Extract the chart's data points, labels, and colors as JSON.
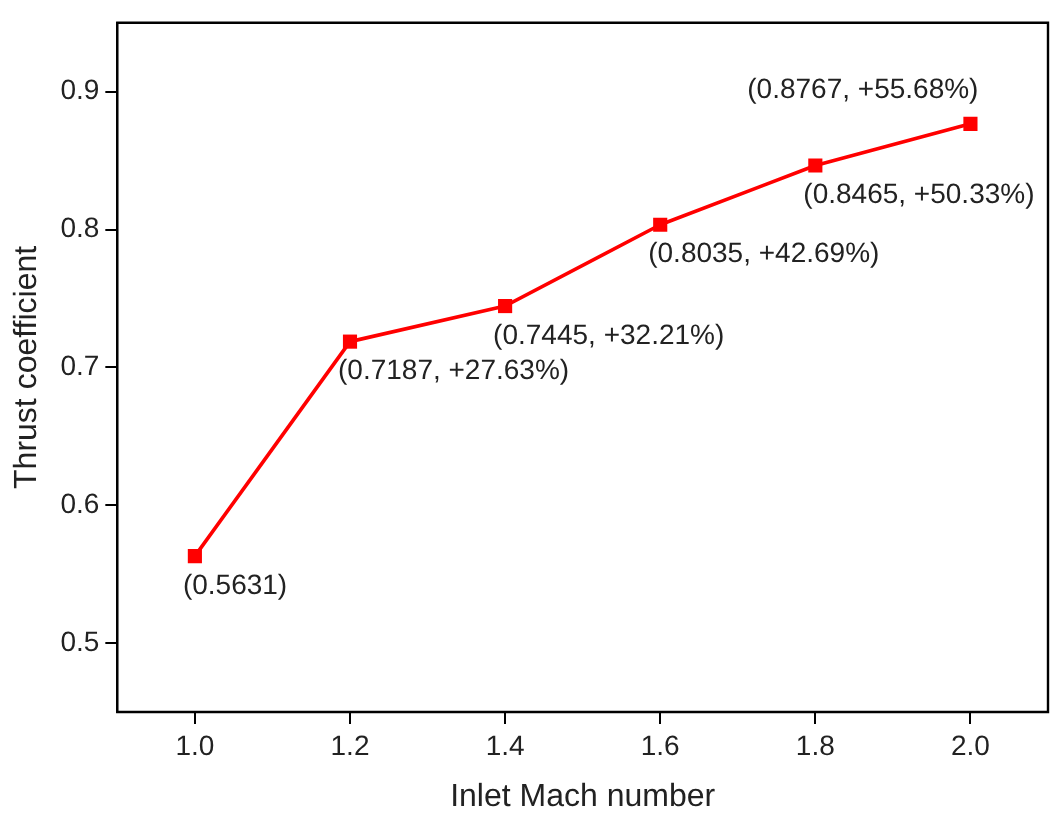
{
  "chart_data": {
    "type": "line",
    "xlabel": "Inlet Mach number",
    "ylabel": "Thrust coefficient",
    "x": [
      1.0,
      1.2,
      1.4,
      1.6,
      1.8,
      2.0
    ],
    "series": [
      {
        "color": "#ff0000",
        "values": [
          0.5631,
          0.7187,
          0.7445,
          0.8035,
          0.8465,
          0.8767
        ],
        "value_labels": [
          "(0.5631)",
          "(0.7187, +27.63%)",
          "(0.7445, +32.21%)",
          "(0.8035, +42.69%)",
          "(0.8465, +50.33%)",
          "(0.8767, +55.68%)"
        ]
      }
    ],
    "xlim": [
      0.9,
      2.1
    ],
    "xticks": [
      {
        "value": 1.0,
        "label": "1.0"
      },
      {
        "value": 1.2,
        "label": "1.2"
      },
      {
        "value": 1.4,
        "label": "1.4"
      },
      {
        "value": 1.6,
        "label": "1.6"
      },
      {
        "value": 1.8,
        "label": "1.8"
      },
      {
        "value": 2.0,
        "label": "2.0"
      }
    ],
    "ylim": [
      0.45,
      0.95
    ],
    "yticks": [
      0.5,
      0.6,
      0.7,
      0.8,
      0.9
    ],
    "grid": false,
    "legend": false,
    "marker": "square",
    "line_style": "solid"
  }
}
